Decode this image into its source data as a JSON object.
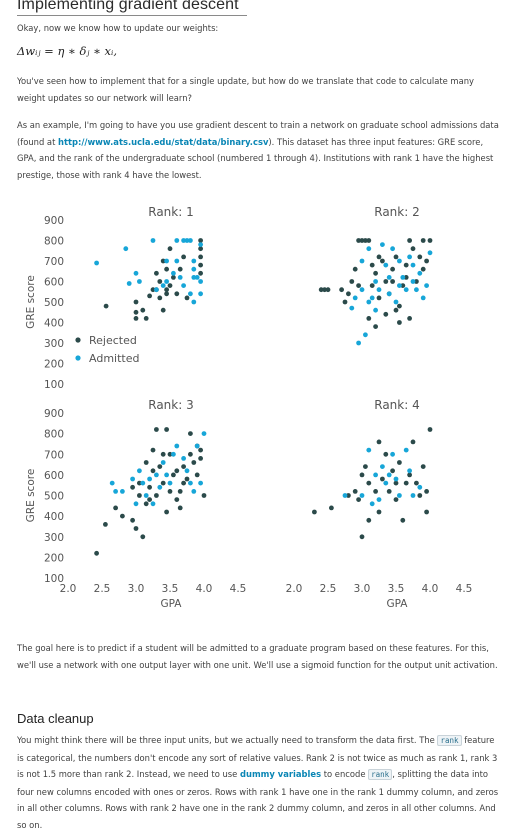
{
  "page": {
    "title": "Implementing gradient descent",
    "intro": "Okay, now we know how to update our weights:",
    "formula": "Δwᵢⱼ = η ∗ δⱼ ∗ xᵢ,",
    "p1": "You've seen how to implement that for a single update, but how do we translate that code to calculate many weight updates so our network will learn?",
    "p2_before": "As an example, I'm going to have you use gradient descent to train a network on graduate school admissions data (found at ",
    "p2_link": "http://www.ats.ucla.edu/stat/data/binary.csv",
    "p2_after": "). This dataset has three input features: GRE score, GPA, and the rank of the undergraduate school (numbered 1 through 4). Institutions with rank 1 have the highest prestige, those with rank 4 have the lowest.",
    "p3": "The goal here is to predict if a student will be admitted to a graduate program based on these features. For this, we'll use a network with one output layer with one unit. We'll use a sigmoid function for the output unit activation.",
    "h2": "Data cleanup",
    "p4_a": "You might think there will be three input units, but we actually need to transform the data first. The ",
    "p4_code1": "rank",
    "p4_b": " feature is categorical, the numbers don't encode any sort of relative values. Rank 2 is not twice as much as rank 1, rank 3 is not 1.5 more than rank 2. Instead, we need to use ",
    "p4_link": "dummy variables",
    "p4_c": " to encode ",
    "p4_code2": "rank",
    "p4_d": ", splitting the data into four new columns encoded with ones or zeros. Rows with rank 1 have one in the rank 1 dummy column, and zeros in all other columns. Rows with rank 2 have one in the rank 2 dummy column, and zeros in all other columns. And so on."
  },
  "colors": {
    "rejected": "#2b4a4a",
    "admitted": "#17a6d8",
    "link": "#0a86b5"
  },
  "chart_data": [
    {
      "type": "scatter",
      "title": "Rank: 1",
      "xlabel": "",
      "ylabel": "GRE score",
      "xlim": [
        2.0,
        4.5
      ],
      "ylim": [
        100,
        900
      ],
      "yticks": [
        900,
        800,
        700,
        600,
        500,
        400,
        300,
        200,
        100
      ],
      "legend": {
        "position": "bottom-left",
        "entries": [
          "Rejected",
          "Admitted"
        ]
      },
      "series": [
        {
          "name": "Rejected",
          "points": [
            [
              2.56,
              480
            ],
            [
              3.3,
              560
            ],
            [
              3.0,
              500
            ],
            [
              3.15,
              420
            ],
            [
              3.4,
              700
            ],
            [
              3.45,
              660
            ],
            [
              3.6,
              540
            ],
            [
              3.55,
              620
            ],
            [
              3.7,
              720
            ],
            [
              3.75,
              520
            ],
            [
              3.4,
              460
            ],
            [
              3.35,
              600
            ],
            [
              3.5,
              580
            ],
            [
              3.95,
              800
            ],
            [
              3.95,
              760
            ],
            [
              3.95,
              720
            ],
            [
              3.95,
              680
            ],
            [
              3.95,
              640
            ],
            [
              3.2,
              530
            ],
            [
              3.65,
              660
            ],
            [
              3.5,
              760
            ],
            [
              3.1,
              460
            ],
            [
              3.25,
              560
            ],
            [
              3.3,
              640
            ],
            [
              3.45,
              560
            ],
            [
              3.35,
              520
            ],
            [
              3.45,
              540
            ],
            [
              3.0,
              450
            ],
            [
              3.0,
              420
            ]
          ]
        },
        {
          "name": "Admitted",
          "points": [
            [
              2.42,
              690
            ],
            [
              2.85,
              760
            ],
            [
              2.9,
              590
            ],
            [
              3.25,
              800
            ],
            [
              3.45,
              600
            ],
            [
              3.6,
              800
            ],
            [
              3.7,
              800
            ],
            [
              3.75,
              800
            ],
            [
              3.65,
              620
            ],
            [
              3.85,
              620
            ],
            [
              3.7,
              580
            ],
            [
              3.8,
              540
            ],
            [
              3.95,
              600
            ],
            [
              3.95,
              540
            ],
            [
              3.95,
              780
            ],
            [
              3.6,
              700
            ],
            [
              3.4,
              580
            ],
            [
              3.3,
              560
            ],
            [
              3.55,
              640
            ],
            [
              3.85,
              700
            ],
            [
              3.85,
              660
            ],
            [
              3.9,
              620
            ],
            [
              3.85,
              500
            ],
            [
              3.05,
              600
            ],
            [
              3.45,
              700
            ],
            [
              3.8,
              800
            ],
            [
              3.0,
              640
            ]
          ]
        }
      ]
    },
    {
      "type": "scatter",
      "title": "Rank: 2",
      "xlabel": "",
      "ylabel": "",
      "xlim": [
        2.0,
        4.5
      ],
      "ylim": [
        100,
        900
      ],
      "series": [
        {
          "name": "Rejected",
          "points": [
            [
              2.4,
              560
            ],
            [
              2.45,
              560
            ],
            [
              2.5,
              560
            ],
            [
              2.7,
              560
            ],
            [
              2.75,
              500
            ],
            [
              2.8,
              540
            ],
            [
              2.85,
              600
            ],
            [
              2.9,
              660
            ],
            [
              2.95,
              800
            ],
            [
              3.0,
              800
            ],
            [
              3.05,
              800
            ],
            [
              3.1,
              800
            ],
            [
              3.15,
              580
            ],
            [
              3.2,
              640
            ],
            [
              3.25,
              520
            ],
            [
              3.3,
              700
            ],
            [
              3.35,
              600
            ],
            [
              3.4,
              540
            ],
            [
              3.45,
              660
            ],
            [
              3.5,
              720
            ],
            [
              3.55,
              480
            ],
            [
              3.6,
              580
            ],
            [
              3.65,
              620
            ],
            [
              3.7,
              800
            ],
            [
              3.75,
              760
            ],
            [
              3.8,
              600
            ],
            [
              3.85,
              720
            ],
            [
              3.9,
              800
            ],
            [
              3.95,
              700
            ],
            [
              4.0,
              800
            ],
            [
              3.1,
              420
            ],
            [
              3.35,
              440
            ],
            [
              3.5,
              460
            ],
            [
              3.2,
              380
            ],
            [
              3.7,
              420
            ],
            [
              3.55,
              400
            ],
            [
              3.9,
              660
            ],
            [
              3.25,
              720
            ],
            [
              3.45,
              600
            ],
            [
              3.15,
              680
            ],
            [
              2.95,
              580
            ],
            [
              3.65,
              680
            ]
          ]
        },
        {
          "name": "Admitted",
          "points": [
            [
              2.95,
              300
            ],
            [
              3.05,
              340
            ],
            [
              2.85,
              470
            ],
            [
              3.0,
              700
            ],
            [
              3.1,
              760
            ],
            [
              3.15,
              520
            ],
            [
              3.2,
              600
            ],
            [
              3.25,
              560
            ],
            [
              3.3,
              780
            ],
            [
              3.35,
              680
            ],
            [
              3.4,
              620
            ],
            [
              3.45,
              760
            ],
            [
              3.5,
              500
            ],
            [
              3.55,
              700
            ],
            [
              3.6,
              620
            ],
            [
              3.65,
              560
            ],
            [
              3.7,
              720
            ],
            [
              3.75,
              680
            ],
            [
              3.8,
              560
            ],
            [
              3.85,
              640
            ],
            [
              3.9,
              520
            ],
            [
              3.95,
              580
            ],
            [
              4.0,
              740
            ],
            [
              3.2,
              460
            ],
            [
              3.4,
              540
            ],
            [
              3.55,
              580
            ],
            [
              3.75,
              600
            ],
            [
              2.9,
              520
            ],
            [
              3.0,
              560
            ],
            [
              3.1,
              500
            ]
          ]
        }
      ]
    },
    {
      "type": "scatter",
      "title": "Rank: 3",
      "xlabel": "GPA",
      "ylabel": "GRE score",
      "xlim": [
        2.0,
        4.5
      ],
      "ylim": [
        100,
        900
      ],
      "xticks": [
        2.0,
        2.5,
        3.0,
        3.5,
        4.0,
        4.5
      ],
      "yticks": [
        900,
        800,
        700,
        600,
        500,
        400,
        300,
        200,
        100
      ],
      "series": [
        {
          "name": "Rejected",
          "points": [
            [
              2.42,
              220
            ],
            [
              2.55,
              360
            ],
            [
              2.7,
              440
            ],
            [
              2.8,
              400
            ],
            [
              2.95,
              380
            ],
            [
              3.0,
              340
            ],
            [
              3.05,
              500
            ],
            [
              3.1,
              300
            ],
            [
              3.15,
              460
            ],
            [
              3.2,
              540
            ],
            [
              3.25,
              620
            ],
            [
              3.3,
              500
            ],
            [
              3.35,
              640
            ],
            [
              3.4,
              560
            ],
            [
              3.45,
              420
            ],
            [
              3.5,
              700
            ],
            [
              3.55,
              600
            ],
            [
              3.6,
              480
            ],
            [
              3.65,
              520
            ],
            [
              3.7,
              640
            ],
            [
              3.75,
              580
            ],
            [
              3.8,
              700
            ],
            [
              3.85,
              660
            ],
            [
              3.9,
              600
            ],
            [
              3.95,
              720
            ],
            [
              4.0,
              500
            ],
            [
              3.3,
              820
            ],
            [
              3.45,
              820
            ],
            [
              3.8,
              800
            ],
            [
              3.9,
              740
            ],
            [
              3.95,
              680
            ],
            [
              3.6,
              620
            ],
            [
              3.4,
              700
            ],
            [
              3.2,
              480
            ],
            [
              3.05,
              560
            ],
            [
              2.95,
              540
            ],
            [
              3.5,
              520
            ],
            [
              3.7,
              560
            ],
            [
              3.65,
              440
            ],
            [
              3.15,
              660
            ],
            [
              3.25,
              720
            ]
          ]
        },
        {
          "name": "Admitted",
          "points": [
            [
              2.65,
              560
            ],
            [
              2.7,
              520
            ],
            [
              2.8,
              520
            ],
            [
              2.95,
              580
            ],
            [
              3.05,
              620
            ],
            [
              3.1,
              560
            ],
            [
              3.2,
              580
            ],
            [
              3.3,
              600
            ],
            [
              3.4,
              660
            ],
            [
              3.45,
              600
            ],
            [
              3.5,
              560
            ],
            [
              3.6,
              740
            ],
            [
              3.7,
              680
            ],
            [
              3.75,
              620
            ],
            [
              3.8,
              560
            ],
            [
              3.85,
              520
            ],
            [
              3.9,
              740
            ],
            [
              4.0,
              800
            ],
            [
              3.95,
              560
            ],
            [
              3.55,
              700
            ],
            [
              3.35,
              540
            ],
            [
              3.0,
              460
            ],
            [
              3.15,
              500
            ],
            [
              3.25,
              460
            ]
          ]
        }
      ]
    },
    {
      "type": "scatter",
      "title": "Rank: 4",
      "xlabel": "GPA",
      "ylabel": "",
      "xlim": [
        2.0,
        4.5
      ],
      "ylim": [
        100,
        900
      ],
      "xticks": [
        2.0,
        2.5,
        3.0,
        3.5,
        4.0,
        4.5
      ],
      "series": [
        {
          "name": "Rejected",
          "points": [
            [
              2.3,
              420
            ],
            [
              2.55,
              440
            ],
            [
              2.8,
              500
            ],
            [
              2.9,
              520
            ],
            [
              2.95,
              480
            ],
            [
              3.0,
              600
            ],
            [
              3.05,
              640
            ],
            [
              3.1,
              560
            ],
            [
              3.2,
              520
            ],
            [
              3.25,
              420
            ],
            [
              3.3,
              580
            ],
            [
              3.35,
              700
            ],
            [
              3.4,
              520
            ],
            [
              3.45,
              620
            ],
            [
              3.5,
              480
            ],
            [
              3.55,
              660
            ],
            [
              3.6,
              380
            ],
            [
              3.65,
              560
            ],
            [
              3.7,
              600
            ],
            [
              3.75,
              760
            ],
            [
              3.8,
              560
            ],
            [
              3.85,
              500
            ],
            [
              3.9,
              640
            ],
            [
              3.95,
              420
            ],
            [
              4.0,
              820
            ],
            [
              3.95,
              520
            ],
            [
              3.1,
              380
            ],
            [
              3.0,
              300
            ],
            [
              3.25,
              760
            ],
            [
              3.5,
              560
            ]
          ]
        },
        {
          "name": "Admitted",
          "points": [
            [
              2.75,
              500
            ],
            [
              3.0,
              500
            ],
            [
              3.1,
              720
            ],
            [
              3.15,
              460
            ],
            [
              3.25,
              480
            ],
            [
              3.35,
              560
            ],
            [
              3.4,
              600
            ],
            [
              3.5,
              580
            ],
            [
              3.55,
              500
            ],
            [
              3.7,
              620
            ],
            [
              3.75,
              500
            ],
            [
              3.85,
              540
            ],
            [
              3.3,
              640
            ],
            [
              3.45,
              700
            ],
            [
              3.65,
              720
            ],
            [
              3.2,
              600
            ]
          ]
        }
      ]
    }
  ]
}
